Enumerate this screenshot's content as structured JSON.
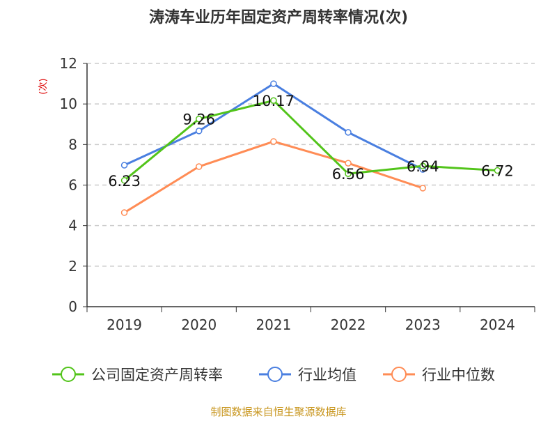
{
  "chart_data": {
    "type": "line",
    "title": "涛涛车业历年固定资产周转率情况(次)",
    "ylabel": "(次)",
    "xlabel": "",
    "ylim": [
      0,
      12
    ],
    "yticks": [
      "0",
      "2",
      "4",
      "6",
      "8",
      "10",
      "12"
    ],
    "categories": [
      "2019",
      "2020",
      "2021",
      "2022",
      "2023",
      "2024"
    ],
    "grid": true,
    "legend_position": "bottom",
    "series": [
      {
        "name": "公司固定资产周转率",
        "color": "#52c41a",
        "values": [
          6.23,
          9.26,
          10.17,
          6.56,
          6.94,
          6.72
        ],
        "labels": [
          "6.23",
          "9.26",
          "10.17",
          "6.56",
          "6.94",
          "6.72"
        ]
      },
      {
        "name": "行业均值",
        "color": "#4a7fe0",
        "values": [
          6.98,
          8.67,
          11.0,
          8.6,
          6.77,
          null
        ]
      },
      {
        "name": "行业中位数",
        "color": "#ff8c55",
        "values": [
          4.64,
          6.91,
          8.15,
          7.08,
          5.85,
          null
        ]
      }
    ],
    "source": "制图数据来自恒生聚源数据库"
  }
}
